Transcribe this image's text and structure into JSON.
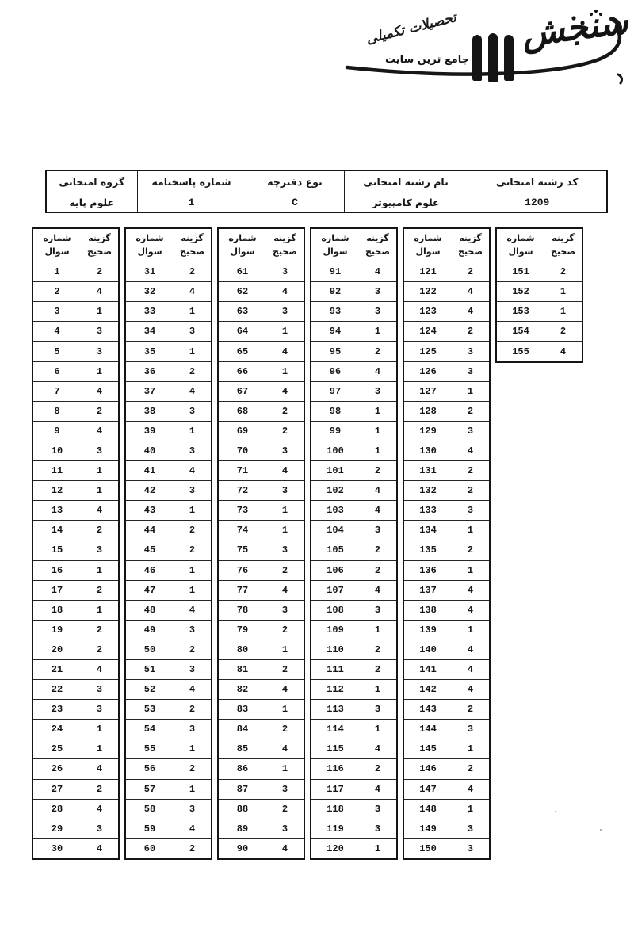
{
  "logo": {
    "brand": "سنجش",
    "tagline_script": "تحصیلات تکمیلی",
    "tagline_print": "جامع ترین سایت",
    "ink_color": "#141414"
  },
  "info_table": {
    "columns": [
      {
        "label": "کد رشته امتحانی",
        "value": "1209"
      },
      {
        "label": "نام رشته امتحانی",
        "value": "علوم کامپیوتر"
      },
      {
        "label": "نوع دفترچه",
        "value": "C"
      },
      {
        "label": "شماره پاسخنامه",
        "value": "1"
      },
      {
        "label": "گروه امتحانی",
        "value": "علوم پایه"
      }
    ]
  },
  "answer_key": {
    "question_header_line1": "شماره",
    "question_header_line2": "سوال",
    "answer_header_line1": "گزینه",
    "answer_header_line2": "صحیح",
    "columns": [
      {
        "start": 1,
        "answers": [
          2,
          4,
          1,
          3,
          3,
          1,
          4,
          2,
          4,
          3,
          1,
          1,
          4,
          2,
          3,
          1,
          2,
          1,
          2,
          2,
          4,
          3,
          3,
          1,
          1,
          4,
          2,
          4,
          3,
          4
        ]
      },
      {
        "start": 31,
        "answers": [
          2,
          4,
          1,
          3,
          1,
          2,
          4,
          3,
          1,
          3,
          4,
          3,
          1,
          2,
          2,
          1,
          1,
          4,
          3,
          2,
          3,
          4,
          2,
          3,
          1,
          2,
          1,
          3,
          4,
          2
        ]
      },
      {
        "start": 61,
        "answers": [
          3,
          4,
          3,
          1,
          4,
          1,
          4,
          2,
          2,
          3,
          4,
          3,
          1,
          1,
          3,
          2,
          4,
          3,
          2,
          1,
          2,
          4,
          1,
          2,
          4,
          1,
          3,
          2,
          3,
          4
        ]
      },
      {
        "start": 91,
        "answers": [
          4,
          3,
          3,
          1,
          2,
          4,
          3,
          1,
          1,
          1,
          2,
          4,
          4,
          3,
          2,
          2,
          4,
          3,
          1,
          2,
          2,
          1,
          3,
          1,
          4,
          2,
          4,
          3,
          3,
          1
        ]
      },
      {
        "start": 121,
        "answers": [
          2,
          4,
          4,
          2,
          3,
          3,
          1,
          2,
          3,
          4,
          2,
          2,
          3,
          1,
          2,
          1,
          4,
          4,
          1,
          4,
          4,
          4,
          2,
          3,
          1,
          2,
          4,
          1,
          3,
          3
        ]
      },
      {
        "start": 151,
        "answers": [
          2,
          1,
          1,
          2,
          4
        ]
      }
    ]
  }
}
